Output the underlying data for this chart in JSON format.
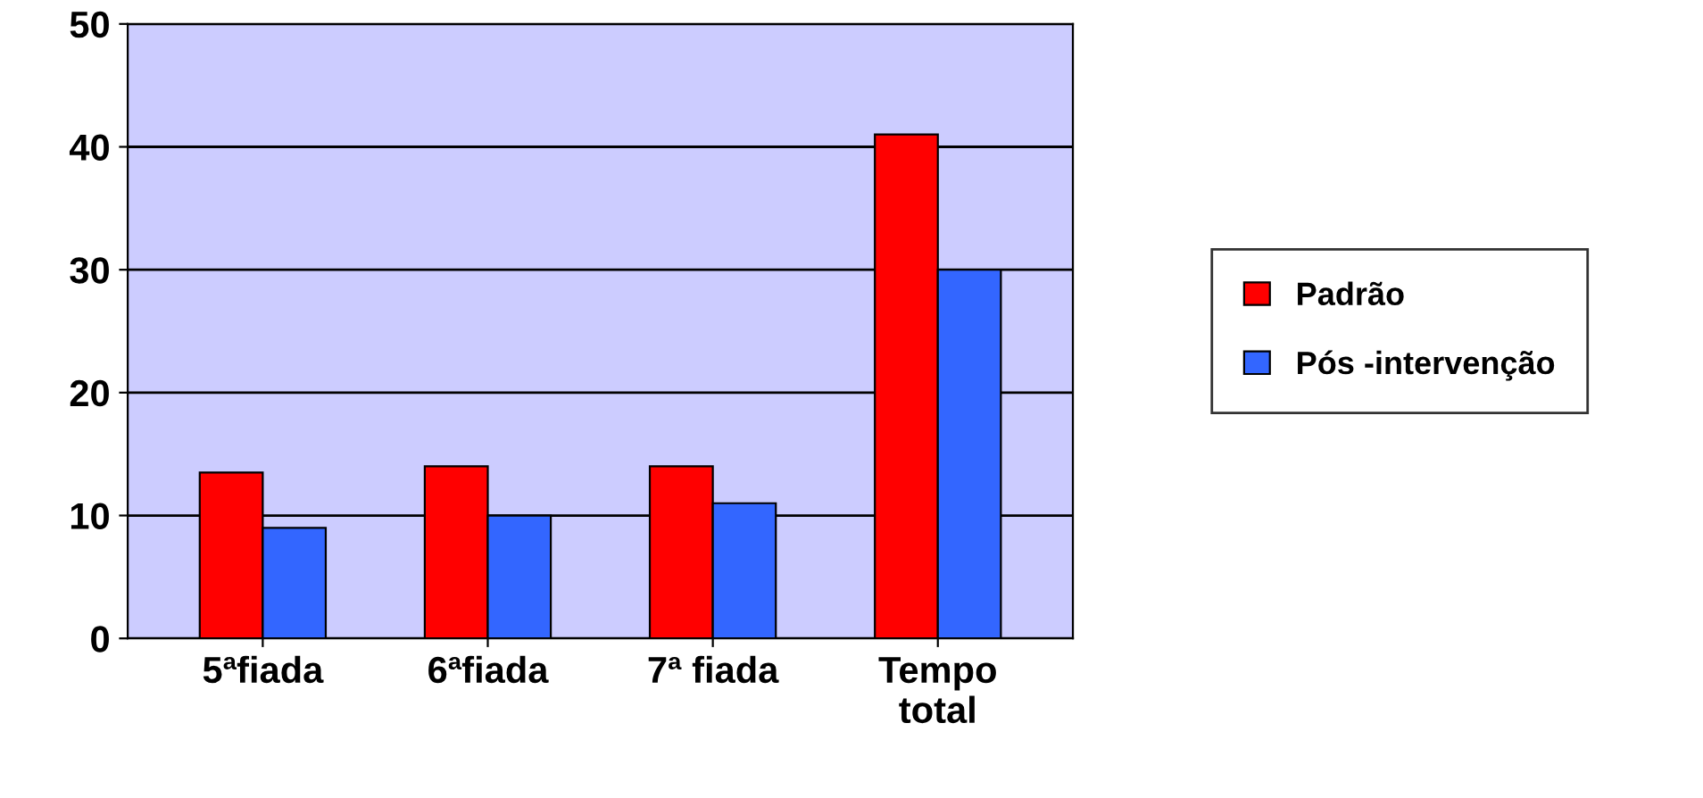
{
  "chart_data": {
    "type": "bar",
    "categories": [
      "5ªfiada",
      "6ªfiada",
      "7ª fiada",
      "Tempo\ntotal"
    ],
    "series": [
      {
        "name": "Padrão",
        "color": "#ff0000",
        "values": [
          13.5,
          14,
          14,
          41
        ]
      },
      {
        "name": "Pós -intervenção",
        "color": "#3366ff",
        "values": [
          9,
          10,
          11,
          30
        ]
      }
    ],
    "ylim": [
      0,
      50
    ],
    "yticks": [
      0,
      10,
      20,
      30,
      40,
      50
    ],
    "grid": "y",
    "legend": "right"
  }
}
